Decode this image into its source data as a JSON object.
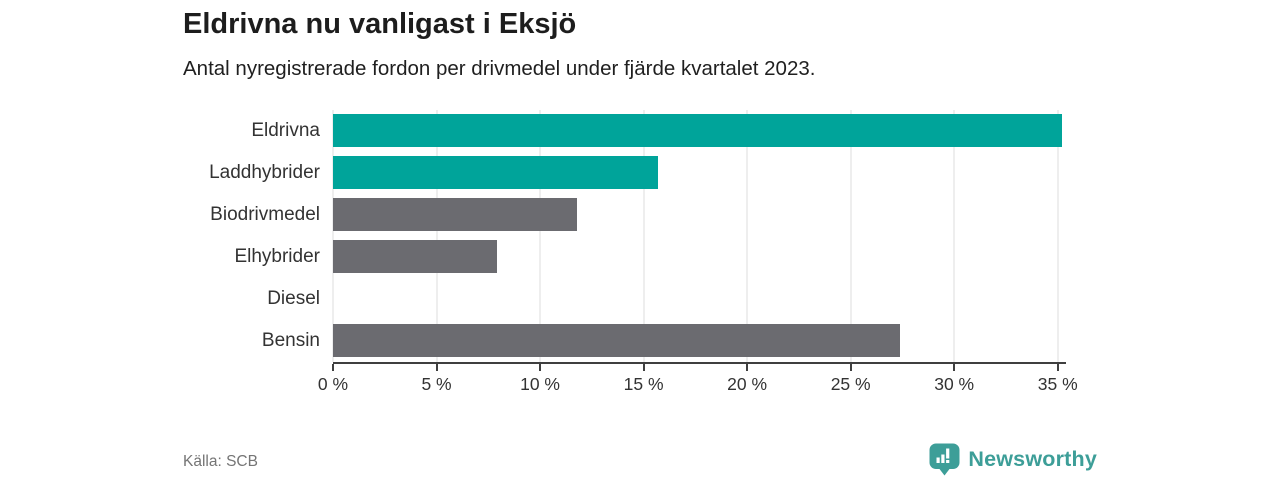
{
  "header": {
    "title": "Eldrivna nu vanligast i Eksjö",
    "subtitle": "Antal nyregistrerade fordon per drivmedel under fjärde kvartalet 2023."
  },
  "chart_data": {
    "type": "bar",
    "orientation": "horizontal",
    "title": "Eldrivna nu vanligast i Eksjö",
    "subtitle": "Antal nyregistrerade fordon per drivmedel under fjärde kvartalet 2023.",
    "categories": [
      "Eldrivna",
      "Laddhybrider",
      "Biodrivmedel",
      "Elhybrider",
      "Diesel",
      "Bensin"
    ],
    "values": [
      35.2,
      15.7,
      11.8,
      7.9,
      0,
      27.4
    ],
    "value_unit": "%",
    "bar_colors": [
      "#00a49a",
      "#00a49a",
      "#6b6b70",
      "#6b6b70",
      "#6b6b70",
      "#6b6b70"
    ],
    "highlight_color": "#00a49a",
    "default_bar_color": "#6b6b70",
    "x_tick_values": [
      0,
      5,
      10,
      15,
      20,
      25,
      30,
      35
    ],
    "x_tick_labels": [
      "0 %",
      "5 %",
      "10 %",
      "15 %",
      "20 %",
      "25 %",
      "30 %",
      "35 %"
    ],
    "xlim": [
      0,
      35.4
    ],
    "xlabel": "",
    "ylabel": "",
    "grid": "vertical",
    "legend": "none"
  },
  "footer": {
    "source": "Källa: SCB",
    "brand": "Newsworthy"
  },
  "colors": {
    "gridline": "#dcdcdc",
    "axis": "#3f3f3f",
    "title_text": "#1d1d1d",
    "label_text": "#333333",
    "muted_text": "#757575",
    "brand_teal": "#3d9e98"
  }
}
